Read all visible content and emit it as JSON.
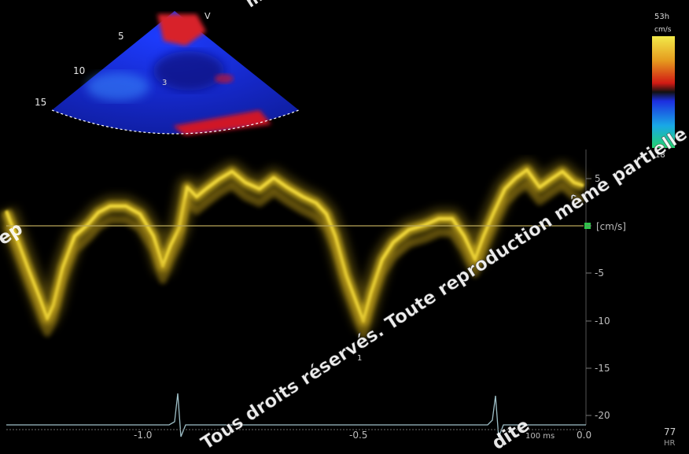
{
  "sector_depth_labels": [
    "5",
    "10",
    "15"
  ],
  "sector_top_label": "V",
  "sector_inner_label": "3",
  "color_bar": {
    "top_label": "53h",
    "top_sublabel": "cm/s",
    "bottom_label": "18",
    "colors": [
      "#e6e23a",
      "#e8a020",
      "#d82818",
      "#1a1a1a",
      "#1c2ed8",
      "#1ab0e8",
      "#20d070"
    ]
  },
  "velocity_axis": {
    "unit_label": "[cm/s]",
    "tick_labels": [
      "5",
      "0",
      "-5",
      "-10",
      "-15",
      "-20"
    ]
  },
  "time_axis": {
    "tick_labels": [
      "-1.0",
      "-0.5",
      "0.0"
    ],
    "scale_label": "100 ms"
  },
  "heart_rate": {
    "value": "77",
    "label": "HR"
  },
  "annotation_label": "1",
  "watermark": {
    "main": "Tous droits réservés. Toute reproduction même partielle est interdite",
    "left_fragment": "rep",
    "top_fragment": "m",
    "bottom_fragment": "dite"
  },
  "colors": {
    "trace": "#e4c61e",
    "baseline": "#b9a75a",
    "ecg": "#9fc0c8",
    "zero_marker": "#2ec44a",
    "axis_text": "#bdbdbd"
  }
}
